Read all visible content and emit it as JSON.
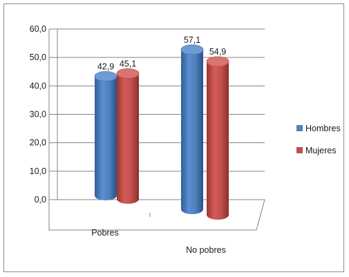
{
  "chart_data": {
    "type": "bar",
    "categories": [
      "Pobres",
      "No pobres"
    ],
    "series": [
      {
        "name": "Hombres",
        "values": [
          42.9,
          57.1
        ],
        "color": "#4f81bd",
        "labels": [
          "42,9",
          "57,1"
        ]
      },
      {
        "name": "Mujeres",
        "values": [
          45.1,
          54.9
        ],
        "color": "#c0504d",
        "labels": [
          "45,1",
          "54,9"
        ]
      }
    ],
    "y_ticks": [
      "0,0",
      "10,0",
      "20,0",
      "30,0",
      "40,0",
      "50,0",
      "60,0"
    ],
    "ylim": [
      0,
      60
    ],
    "grid": true,
    "legend_position": "right",
    "style": "3d-cylinder",
    "title": "",
    "xlabel": "",
    "ylabel": ""
  }
}
